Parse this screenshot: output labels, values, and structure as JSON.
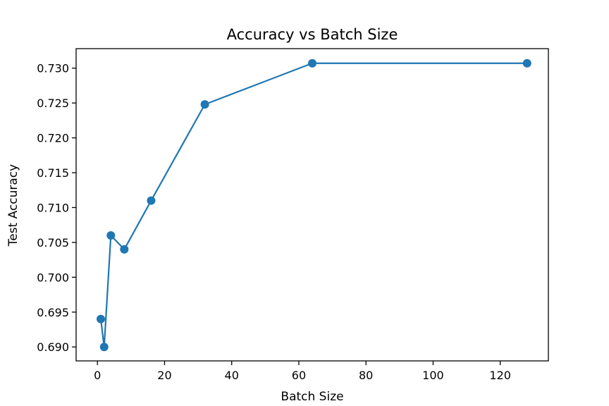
{
  "chart_data": {
    "type": "line",
    "title": "Accuracy vs Batch Size",
    "xlabel": "Batch Size",
    "ylabel": "Test Accuracy",
    "xlim": [
      -6.35,
      134.35
    ],
    "ylim": [
      0.688,
      0.7328
    ],
    "xticks": [
      0,
      20,
      40,
      60,
      80,
      100,
      120
    ],
    "xtick_labels": [
      "0",
      "20",
      "40",
      "60",
      "80",
      "100",
      "120"
    ],
    "yticks": [
      0.69,
      0.695,
      0.7,
      0.705,
      0.71,
      0.715,
      0.72,
      0.725,
      0.73
    ],
    "ytick_labels": [
      "0.690",
      "0.695",
      "0.700",
      "0.705",
      "0.710",
      "0.715",
      "0.720",
      "0.725",
      "0.730"
    ],
    "grid": false,
    "series": [
      {
        "color": "#1f77b4",
        "marker": "circle",
        "points": [
          {
            "x": 1,
            "y": 0.694
          },
          {
            "x": 2,
            "y": 0.69
          },
          {
            "x": 4,
            "y": 0.706
          },
          {
            "x": 8,
            "y": 0.704
          },
          {
            "x": 16,
            "y": 0.711
          },
          {
            "x": 32,
            "y": 0.7248
          },
          {
            "x": 64,
            "y": 0.7307
          },
          {
            "x": 128,
            "y": 0.7307
          }
        ]
      }
    ]
  }
}
